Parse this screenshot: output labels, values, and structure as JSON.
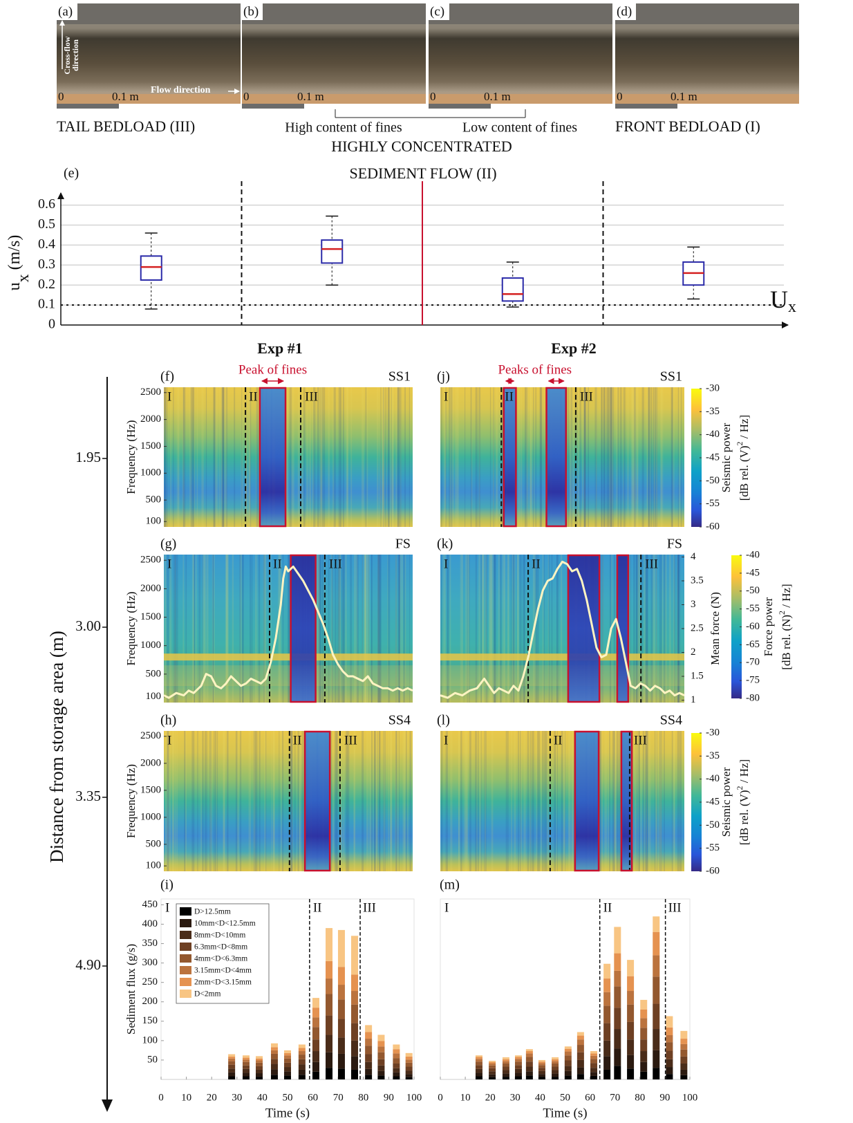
{
  "photos": [
    {
      "label": "(a)"
    },
    {
      "label": "(b)"
    },
    {
      "label": "(c)"
    },
    {
      "label": "(d)"
    }
  ],
  "photo_scale": {
    "start": 0,
    "end": "0.1 m"
  },
  "photo_arrows": {
    "cross_flow": [
      "Cross-flow",
      "direction"
    ],
    "flow": "Flow direction"
  },
  "captions": [
    "TAIL BEDLOAD (III)",
    "High content of fines",
    "Low content of fines",
    "FRONT BEDLOAD (I)"
  ],
  "group_caption": [
    "HIGHLY CONCENTRATED",
    "SEDIMENT FLOW (II)"
  ],
  "columns": [
    "Exp #1",
    "Exp #2"
  ],
  "distance_axis": {
    "label": "Distance from storage area (m)",
    "ticks": [
      1.95,
      {
        "value": 3,
        "label": "3.00"
      },
      3.35,
      {
        "value": 4.9,
        "label": "4.90"
      }
    ]
  },
  "chart_data": [
    {
      "type": "box",
      "panel_label": "(e)",
      "categories": [
        null,
        null,
        null,
        null
      ],
      "low": [
        0.08,
        0.2,
        0.09,
        0.13
      ],
      "q1": [
        0.225,
        0.31,
        0.12,
        0.2
      ],
      "median": [
        0.29,
        0.38,
        0.155,
        0.26
      ],
      "q3": [
        0.345,
        0.425,
        0.235,
        0.315
      ],
      "high": [
        0.46,
        0.545,
        0.315,
        0.39
      ],
      "ylim": [
        0,
        0.64
      ],
      "yticks": [
        0,
        0.1,
        0.2,
        0.3,
        0.4,
        0.5,
        0.6
      ],
      "grid": true,
      "ylabel": [
        "u",
        "x",
        " (m/s)"
      ],
      "reference": {
        "value": 0.1,
        "label": [
          "U",
          "x"
        ]
      },
      "box_color": "#2a2aa8",
      "median_color": "#d42020"
    },
    {
      "type": "spectrogram",
      "panel_label": "(f)",
      "sensor": "SS1",
      "xlim": [
        0,
        100
      ],
      "ylim": [
        0,
        2600
      ],
      "yticks": [
        100,
        500,
        1000,
        1500,
        2000,
        2500
      ],
      "ylabel": "Frequency (Hz)",
      "dividers": [
        32.8,
        55
      ],
      "phase_labels": [
        "I",
        "II",
        "III"
      ],
      "highlights": [
        [
          38.6,
          48.9
        ]
      ],
      "annotation": "Peak of fines",
      "highlight_color": "#c8102e"
    },
    {
      "type": "spectrogram",
      "panel_label": "(g)",
      "sensor": "FS",
      "xlim": [
        0,
        100
      ],
      "ylim": [
        0,
        2600
      ],
      "yticks": [
        100,
        500,
        1000,
        1500,
        2000,
        2500
      ],
      "ylabel": "Frequency (Hz)",
      "band_hz": 800,
      "dividers": [
        42.5,
        64.7
      ],
      "phase_labels": [
        "I",
        "II",
        "III"
      ],
      "highlights": [
        [
          51,
          61
        ]
      ],
      "highlight_color": "#c8102e",
      "y2lim": [
        0.95,
        4.05
      ],
      "force": {
        "color": "#fff4c2",
        "x": [
          0,
          2,
          5,
          8,
          10,
          12,
          15,
          17,
          19,
          21,
          23,
          25,
          27,
          29,
          31,
          33,
          35,
          37,
          39,
          41,
          43,
          45,
          47,
          48,
          49,
          50,
          51,
          52,
          54,
          56,
          58,
          60,
          62,
          64,
          66,
          68,
          70,
          72,
          74,
          76,
          78,
          80,
          82,
          84,
          86,
          88,
          90,
          92,
          94,
          96,
          98,
          100
        ],
        "values": [
          1.1,
          1.05,
          1.15,
          1.1,
          1.2,
          1.15,
          1.3,
          1.55,
          1.5,
          1.3,
          1.25,
          1.35,
          1.5,
          1.4,
          1.3,
          1.35,
          1.45,
          1.4,
          1.35,
          1.45,
          1.8,
          2.3,
          3,
          3.55,
          3.8,
          3.7,
          3.75,
          3.8,
          3.65,
          3.5,
          3.3,
          3.1,
          2.85,
          2.6,
          2.3,
          1.95,
          1.75,
          1.6,
          1.5,
          1.5,
          1.45,
          1.4,
          1.5,
          1.35,
          1.3,
          1.25,
          1.25,
          1.2,
          1.25,
          1.2,
          1.25,
          1.2
        ]
      }
    },
    {
      "type": "spectrogram",
      "panel_label": "(h)",
      "sensor": "SS4",
      "xlim": [
        0,
        100
      ],
      "ylim": [
        0,
        2600
      ],
      "yticks": [
        100,
        500,
        1000,
        1500,
        2000,
        2500
      ],
      "ylabel": "Frequency (Hz)",
      "dividers": [
        50.5,
        70.8
      ],
      "phase_labels": [
        "I",
        "II",
        "III"
      ],
      "highlights": [
        [
          56.7,
          66.7
        ]
      ],
      "highlight_color": "#c8102e"
    },
    {
      "type": "bar",
      "stacked": true,
      "panel_label": "(i)",
      "xlim": [
        0,
        100
      ],
      "ylim": [
        0,
        465
      ],
      "x": [
        27.9,
        33.6,
        38.8,
        44.8,
        50,
        55.7,
        61.2,
        66.4,
        71.3,
        76.5,
        82,
        87,
        93,
        98
      ],
      "xticks": [
        0,
        10,
        20,
        30,
        40,
        50,
        60,
        70,
        80,
        90,
        100
      ],
      "xlabel": "Time (s)",
      "yticks": [
        50,
        100,
        150,
        200,
        250,
        300,
        350,
        400,
        450
      ],
      "ylabel": "Sediment flux (g/s)",
      "dividers": [
        58.7,
        78.7
      ],
      "phase_labels": [
        "I",
        "II",
        "III"
      ],
      "legend": "upper left",
      "series": [
        {
          "name": "D>12.5mm",
          "color": "#000000",
          "values": [
            8,
            8,
            7,
            12,
            10,
            12,
            20,
            30,
            28,
            25,
            12,
            10,
            8,
            6
          ]
        },
        {
          "name": "10mm<D<12.5mm",
          "color": "#2b1a10",
          "values": [
            10,
            9,
            9,
            14,
            11,
            13,
            25,
            40,
            38,
            35,
            15,
            12,
            10,
            8
          ]
        },
        {
          "name": "8mm<D<10mm",
          "color": "#4a2c19",
          "values": [
            10,
            10,
            9,
            14,
            11,
            14,
            28,
            45,
            42,
            40,
            18,
            14,
            11,
            9
          ]
        },
        {
          "name": "6.3mm<D<8mm",
          "color": "#6e4023",
          "values": [
            10,
            9,
            9,
            13,
            11,
            13,
            30,
            50,
            48,
            45,
            20,
            16,
            12,
            10
          ]
        },
        {
          "name": "4mm<D<6.3mm",
          "color": "#93582f",
          "values": [
            9,
            9,
            9,
            13,
            11,
            12,
            32,
            55,
            50,
            48,
            22,
            18,
            14,
            10
          ]
        },
        {
          "name": "3.15mm<D<4mm",
          "color": "#bb733e",
          "values": [
            7,
            6,
            6,
            9,
            8,
            9,
            25,
            40,
            38,
            35,
            18,
            15,
            12,
            8
          ]
        },
        {
          "name": "2mm<D<3.15mm",
          "color": "#e59250",
          "values": [
            5,
            5,
            5,
            8,
            6,
            8,
            25,
            45,
            46,
            42,
            17,
            14,
            11,
            8
          ]
        },
        {
          "name": "D<2mm",
          "color": "#f8c583",
          "values": [
            6,
            6,
            6,
            10,
            7,
            9,
            25,
            85,
            95,
            100,
            18,
            16,
            12,
            9
          ]
        }
      ]
    },
    {
      "type": "spectrogram",
      "panel_label": "(j)",
      "sensor": "SS1",
      "xlim": [
        0,
        100
      ],
      "ylim": [
        0,
        2600
      ],
      "dividers": [
        25,
        55.5
      ],
      "phase_labels": [
        "I",
        "II",
        "III"
      ],
      "highlights": [
        [
          26,
          31
        ],
        [
          43.5,
          51.5
        ]
      ],
      "annotation": "Peaks of fines",
      "highlight_color": "#c8102e",
      "colorbar": {
        "label": "Seismic power",
        "unit": [
          "[dB rel. (V)",
          "2",
          " / Hz]"
        ],
        "clim": [
          -60,
          -30
        ],
        "ticks": [
          -30,
          -35,
          -40,
          -45,
          -50,
          -55,
          -60
        ]
      }
    },
    {
      "type": "spectrogram",
      "panel_label": "(k)",
      "sensor": "FS",
      "xlim": [
        0,
        100
      ],
      "ylim": [
        0,
        2600
      ],
      "band_hz": 800,
      "dividers": [
        36,
        82.2
      ],
      "phase_labels": [
        "I",
        "II",
        "III"
      ],
      "highlights": [
        [
          52.4,
          65.2
        ],
        [
          72.5,
          77
        ]
      ],
      "highlight_color": "#c8102e",
      "y2lim": [
        0.95,
        4.05
      ],
      "y2ticks": [
        4,
        3.5,
        3,
        2.5,
        2,
        1.5,
        1
      ],
      "y2label": "Mean force (N)",
      "force": {
        "color": "#fff4c2",
        "x": [
          0,
          3,
          6,
          9,
          12,
          15,
          18,
          20,
          22,
          24,
          26,
          28,
          30,
          32,
          34,
          36,
          38,
          40,
          42,
          44,
          46,
          48,
          50,
          52,
          54,
          56,
          58,
          60,
          62,
          64,
          66,
          68,
          70,
          72,
          74,
          76,
          78,
          80,
          82,
          84,
          86,
          88,
          90,
          92,
          94,
          96,
          98,
          100
        ],
        "values": [
          1.1,
          1.05,
          1.15,
          1.1,
          1.2,
          1.25,
          1.45,
          1.3,
          1.15,
          1.25,
          1.2,
          1.15,
          1.3,
          1.2,
          1.5,
          1.9,
          2.4,
          2.9,
          3.3,
          3.5,
          3.55,
          3.75,
          3.9,
          3.85,
          3.7,
          3.75,
          3.5,
          3.1,
          2.6,
          2.1,
          1.9,
          1.95,
          2.5,
          2.7,
          2.3,
          1.8,
          1.3,
          1.25,
          1.35,
          1.3,
          1.2,
          1.3,
          1.25,
          1.15,
          1.2,
          1.1,
          1.15,
          1.1
        ]
      },
      "colorbar": {
        "label": "Force power",
        "unit": [
          "[dB rel. (N)",
          "2",
          " / Hz]"
        ],
        "clim": [
          -80,
          -40
        ],
        "ticks": [
          -40,
          -45,
          -50,
          -55,
          -60,
          -65,
          -70,
          -75,
          -80
        ]
      }
    },
    {
      "type": "spectrogram",
      "panel_label": "(l)",
      "sensor": "SS4",
      "xlim": [
        0,
        100
      ],
      "ylim": [
        0,
        2600
      ],
      "dividers": [
        45,
        77.6
      ],
      "phase_labels": [
        "I",
        "II",
        "III"
      ],
      "highlights": [
        [
          55.2,
          64.9
        ],
        [
          74.2,
          78.5
        ]
      ],
      "highlight_color": "#c8102e",
      "colorbar": {
        "label": "Seismic power",
        "unit": [
          "[dB rel. (V)",
          "2",
          " / Hz]"
        ],
        "clim": [
          -60,
          -30
        ],
        "ticks": [
          -30,
          -35,
          -40,
          -45,
          -50,
          -55,
          -60
        ]
      }
    },
    {
      "type": "bar",
      "stacked": true,
      "panel_label": "(m)",
      "xlim": [
        0,
        100
      ],
      "ylim": [
        0,
        465
      ],
      "x": [
        15.5,
        20.8,
        26.3,
        31.3,
        35.7,
        40.7,
        46,
        51.2,
        56.2,
        61.5,
        66.8,
        71,
        76.2,
        81.5,
        86.5,
        91.8,
        97.6
      ],
      "xticks": [
        0,
        10,
        20,
        30,
        40,
        50,
        60,
        70,
        80,
        90,
        100
      ],
      "xlabel": "Time (s)",
      "dividers": [
        63.9,
        90.2
      ],
      "phase_labels": [
        "I",
        "II",
        "III"
      ],
      "series": [
        {
          "color": "#000000",
          "values": [
            8,
            6,
            7,
            8,
            10,
            7,
            7,
            10,
            14,
            9,
            25,
            35,
            28,
            20,
            30,
            14,
            11
          ]
        },
        {
          "color": "#2b1a10",
          "values": [
            9,
            7,
            8,
            9,
            11,
            7,
            8,
            12,
            17,
            10,
            35,
            45,
            35,
            25,
            45,
            18,
            14
          ]
        },
        {
          "color": "#4a2c19",
          "values": [
            10,
            8,
            9,
            10,
            12,
            8,
            9,
            13,
            19,
            11,
            40,
            50,
            40,
            28,
            55,
            20,
            16
          ]
        },
        {
          "color": "#6e4023",
          "values": [
            10,
            8,
            9,
            10,
            13,
            8,
            9,
            14,
            20,
            12,
            45,
            55,
            45,
            30,
            65,
            22,
            18
          ]
        },
        {
          "color": "#93582f",
          "values": [
            9,
            7,
            8,
            9,
            12,
            7,
            8,
            13,
            19,
            11,
            45,
            55,
            45,
            30,
            70,
            22,
            18
          ]
        },
        {
          "color": "#bb733e",
          "values": [
            7,
            5,
            6,
            7,
            9,
            5,
            6,
            10,
            14,
            8,
            35,
            40,
            35,
            25,
            55,
            18,
            14
          ]
        },
        {
          "color": "#e59250",
          "values": [
            5,
            4,
            5,
            5,
            6,
            4,
            5,
            7,
            10,
            6,
            35,
            45,
            38,
            22,
            60,
            20,
            14
          ]
        },
        {
          "color": "#f8c583",
          "values": [
            4,
            3,
            5,
            4,
            5,
            4,
            5,
            6,
            9,
            6,
            38,
            68,
            42,
            25,
            40,
            29,
            20
          ]
        }
      ]
    }
  ]
}
